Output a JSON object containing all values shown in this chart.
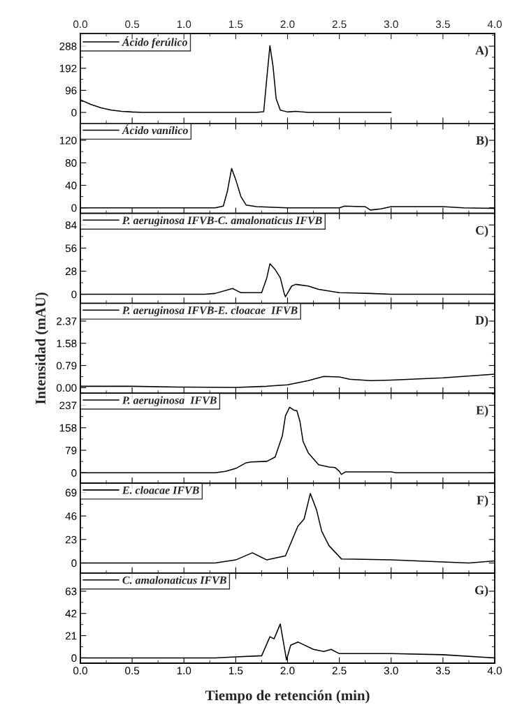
{
  "chart_data": [
    {
      "type": "line",
      "x": [
        0,
        0.1,
        0.2,
        0.3,
        0.4,
        0.5,
        0.6,
        1.7,
        1.77,
        1.8,
        1.83,
        1.86,
        1.89,
        1.93,
        2.0,
        2.08,
        2.12,
        2.2,
        3.0
      ],
      "series": [
        {
          "name": "Ácido ferúlico",
          "color": "#000000",
          "values": [
            55,
            35,
            20,
            10,
            5,
            2,
            0,
            0,
            3,
            150,
            290,
            200,
            60,
            10,
            2,
            5,
            3,
            0,
            0
          ]
        }
      ],
      "xlim": [
        0,
        4
      ],
      "x2lim": [
        0,
        4
      ],
      "x2ticks": [
        {
          "value": 0,
          "label": "0.0"
        },
        {
          "value": 0.5,
          "label": "0.5"
        },
        {
          "value": 1,
          "label": "1.0"
        },
        {
          "value": 1.5,
          "label": "1.5"
        },
        {
          "value": 2,
          "label": "2.0"
        },
        {
          "value": 2.5,
          "label": "2.5"
        },
        {
          "value": 3,
          "label": "3.0"
        },
        {
          "value": 3.5,
          "label": "3.5"
        },
        {
          "value": 4,
          "label": "4.0"
        }
      ],
      "ylim": [
        -48,
        343
      ],
      "yticks": [
        0,
        96,
        192,
        288
      ],
      "tick_labels": "y",
      "legend": "top left",
      "annotations": [
        "A)"
      ]
    },
    {
      "type": "line",
      "x": [
        0,
        1.3,
        1.38,
        1.42,
        1.46,
        1.5,
        1.55,
        1.6,
        1.7,
        2.0,
        2.5,
        2.55,
        2.75,
        2.8,
        2.9,
        3.0,
        3.5,
        3.7,
        4.0
      ],
      "series": [
        {
          "name": "Ácido vanílico",
          "color": "#000000",
          "values": [
            0,
            0,
            3,
            30,
            70,
            50,
            20,
            5,
            2,
            0,
            0,
            3,
            2,
            -4,
            -2,
            2,
            2,
            0,
            -1
          ]
        }
      ],
      "xlim": [
        0,
        4
      ],
      "ylim": [
        -10,
        150
      ],
      "yticks": [
        0,
        40,
        80,
        120
      ],
      "tick_labels": "y",
      "legend": "top left",
      "annotations": [
        "B)"
      ]
    },
    {
      "type": "line",
      "x": [
        0,
        1.2,
        1.3,
        1.47,
        1.5,
        1.55,
        1.75,
        1.8,
        1.83,
        1.88,
        1.93,
        1.97,
        1.98,
        2.04,
        2.08,
        2.2,
        2.3,
        2.5,
        2.8,
        3.0,
        4.0
      ],
      "series": [
        {
          "name": "P. aeruginosa IFVB-C. amalonaticus IFVB",
          "color": "#000000",
          "values": [
            0,
            0,
            1,
            7,
            5,
            2,
            2,
            20,
            37,
            30,
            20,
            0,
            -3,
            10,
            12,
            10,
            6,
            2,
            1,
            0,
            0
          ]
        }
      ],
      "xlim": [
        0,
        4
      ],
      "ylim": [
        -11,
        98
      ],
      "yticks": [
        0,
        28,
        56,
        84
      ],
      "tick_labels": "y",
      "legend": "top left",
      "annotations": [
        "C)"
      ]
    },
    {
      "type": "line",
      "x": [
        0,
        0.5,
        1.0,
        1.5,
        1.8,
        2.0,
        2.2,
        2.35,
        2.5,
        2.6,
        2.8,
        3.0,
        3.5,
        4.0
      ],
      "series": [
        {
          "name": "P. aeruginosa IFVB-E. cloacae  IFVB",
          "color": "#000000",
          "values": [
            0.05,
            0.05,
            0.02,
            0.01,
            0.05,
            0.1,
            0.25,
            0.4,
            0.38,
            0.3,
            0.25,
            0.27,
            0.35,
            0.48
          ]
        }
      ],
      "xlim": [
        0,
        4
      ],
      "ylim": [
        -0.2,
        3.0
      ],
      "yticks": [
        {
          "value": 0,
          "label": "0.00"
        },
        0.79,
        1.58,
        2.37
      ],
      "tick_labels": "y",
      "legend": "top left",
      "ylabel": "Intensidad (mAU)",
      "annotations": [
        "D)"
      ]
    },
    {
      "type": "line",
      "x": [
        0,
        1.3,
        1.4,
        1.5,
        1.6,
        1.65,
        1.8,
        1.88,
        1.95,
        1.98,
        2.02,
        2.06,
        2.09,
        2.12,
        2.15,
        2.2,
        2.3,
        2.4,
        2.46,
        2.5,
        2.52,
        2.56,
        3.0,
        3.05,
        4.0
      ],
      "series": [
        {
          "name": "P. aeruginosa  IFVB",
          "color": "#000000",
          "values": [
            0,
            0,
            5,
            15,
            35,
            38,
            40,
            55,
            130,
            200,
            230,
            220,
            218,
            180,
            110,
            70,
            28,
            20,
            18,
            5,
            -6,
            3,
            3,
            0,
            0
          ]
        }
      ],
      "xlim": [
        0,
        4
      ],
      "ylim": [
        -37,
        279
      ],
      "yticks": [
        0,
        79,
        158,
        237
      ],
      "tick_labels": "y",
      "legend": "top left",
      "annotations": [
        "E)"
      ]
    },
    {
      "type": "line",
      "x": [
        0,
        1.3,
        1.5,
        1.66,
        1.72,
        1.8,
        1.98,
        2.1,
        2.16,
        2.22,
        2.28,
        2.33,
        2.4,
        2.52,
        3.0,
        3.5,
        3.75,
        4.0
      ],
      "series": [
        {
          "name": "E. cloacae IFVB",
          "color": "#000000",
          "values": [
            0,
            0,
            3,
            10,
            7,
            3,
            7,
            36,
            43,
            68,
            52,
            31,
            17,
            4,
            3,
            1,
            0,
            2
          ]
        }
      ],
      "xlim": [
        0,
        4
      ],
      "ylim": [
        -10,
        78
      ],
      "yticks": [
        0,
        23,
        46,
        69
      ],
      "tick_labels": "y",
      "legend": "top left",
      "annotations": [
        "F)"
      ]
    },
    {
      "type": "line",
      "x": [
        0,
        1.3,
        1.5,
        1.75,
        1.83,
        1.87,
        1.93,
        1.96,
        1.99,
        2.03,
        2.1,
        2.25,
        2.35,
        2.42,
        2.5,
        3.0,
        3.5,
        4.0
      ],
      "series": [
        {
          "name": "C. amalonaticus IFVB",
          "color": "#000000",
          "values": [
            0,
            0,
            1,
            2,
            20,
            18,
            32,
            15,
            -2,
            12,
            15,
            8,
            6,
            8,
            4,
            4,
            3,
            0
          ]
        }
      ],
      "xlim": [
        0,
        4
      ],
      "xticks": [
        {
          "value": 0,
          "label": "0.0"
        },
        {
          "value": 0.5,
          "label": "0.5"
        },
        {
          "value": 1,
          "label": "1.0"
        },
        {
          "value": 1.5,
          "label": "1.5"
        },
        {
          "value": 2,
          "label": "2.0"
        },
        {
          "value": 2.5,
          "label": "2.5"
        },
        {
          "value": 3,
          "label": "3.0"
        },
        {
          "value": 3.5,
          "label": "3.5"
        },
        {
          "value": 4,
          "label": "4.0"
        }
      ],
      "ylim": [
        -5,
        80
      ],
      "yticks": [
        0,
        21,
        42,
        63
      ],
      "xlabel": "Tiempo de retención (min)",
      "legend": "top left",
      "annotations": [
        "G)"
      ]
    }
  ]
}
